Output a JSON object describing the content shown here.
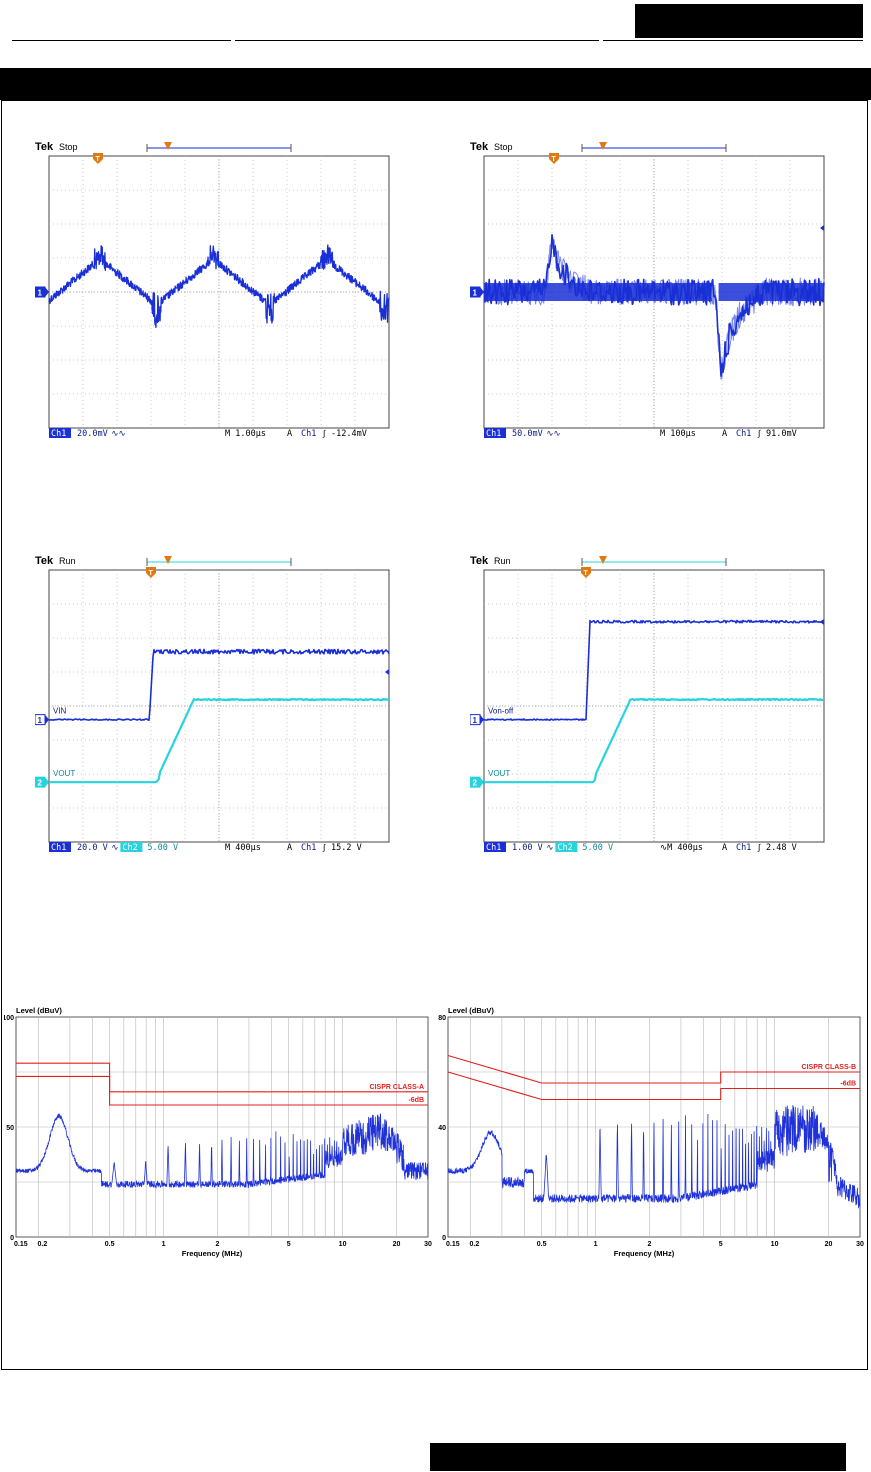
{
  "page": {
    "header_colors": {
      "bar": "#000000"
    }
  },
  "scopes": [
    {
      "id": "ripple",
      "tek": "Tek",
      "state": "Stop",
      "bottom": {
        "ch": "Ch1",
        "scale": "20.0mV",
        "bw": "∿∿",
        "time": "M 1.00µs",
        "trig": "A",
        "trigch": "Ch1",
        "slope": "∫",
        "level": "-12.4mV"
      },
      "ch1_marker": "1"
    },
    {
      "id": "transient",
      "tek": "Tek",
      "state": "Stop",
      "bottom": {
        "ch": "Ch1",
        "scale": "50.0mV",
        "bw": "∿∿",
        "time": "M 100µs",
        "trig": "A",
        "trigch": "Ch1",
        "slope": "∫",
        "level": "91.0mV"
      },
      "ch1_marker": "1"
    },
    {
      "id": "startup-vin",
      "tek": "Tek",
      "state": "Run",
      "labels": {
        "v1": "VIN",
        "v2": "VOUT"
      },
      "bottom": {
        "ch": "Ch1",
        "scale": "20.0 V",
        "bw": "∿",
        "ch2": "Ch2",
        "scale2": "5.00 V",
        "time": "M 400µs",
        "trig": "A",
        "trigch": "Ch1",
        "slope": "∫",
        "level": "15.2 V"
      },
      "ch1_marker": "1",
      "ch2_marker": "2"
    },
    {
      "id": "startup-onoff",
      "tek": "Tek",
      "state": "Run",
      "labels": {
        "v1": "Von-off",
        "v2": "VOUT"
      },
      "bottom": {
        "ch": "Ch1",
        "scale": "1.00 V",
        "bw": "∿",
        "ch2": "Ch2",
        "scale2": "5.00 V",
        "time": "∿M 400µs",
        "trig": "A",
        "trigch": "Ch1",
        "slope": "∫",
        "level": "2.48 V"
      },
      "ch1_marker": "1",
      "ch2_marker": "2"
    }
  ],
  "chart_data": [
    {
      "type": "line",
      "ylabel": "Level (dBuV)",
      "xlabel": "Frequency (MHz)",
      "ylim": [
        0,
        100
      ],
      "yticks": [
        "0",
        "50",
        "100"
      ],
      "xscale": "log",
      "xlim": [
        0.15,
        30
      ],
      "xticks": [
        "0.15",
        "0.2",
        "0.5",
        "1",
        "2",
        "5",
        "10",
        "20",
        "30"
      ],
      "series": [
        {
          "name": "CISPR CLASS-A",
          "color": "#e0201c",
          "x": [
            0.15,
            0.5,
            0.5,
            30
          ],
          "y": [
            79,
            79,
            66,
            66
          ]
        },
        {
          "name": "-6dB",
          "color": "#e0201c",
          "x": [
            0.15,
            0.5,
            0.5,
            30
          ],
          "y": [
            73,
            73,
            60,
            60
          ]
        }
      ],
      "trace_peaks": [
        {
          "x": 0.17,
          "y": 34
        },
        {
          "x": 0.2,
          "y": 31
        },
        {
          "x": 0.26,
          "y": 55
        },
        {
          "x": 0.3,
          "y": 36
        },
        {
          "x": 0.4,
          "y": 26
        },
        {
          "x": 0.55,
          "y": 36
        },
        {
          "x": 0.7,
          "y": 26
        },
        {
          "x": 0.9,
          "y": 45
        },
        {
          "x": 1.5,
          "y": 46
        },
        {
          "x": 3,
          "y": 48
        },
        {
          "x": 6,
          "y": 49
        },
        {
          "x": 10,
          "y": 50
        },
        {
          "x": 16,
          "y": 57
        },
        {
          "x": 20,
          "y": 48
        },
        {
          "x": 30,
          "y": 37
        }
      ]
    },
    {
      "type": "line",
      "ylabel": "Level (dBuV)",
      "xlabel": "Frequency (MHz)",
      "ylim": [
        0,
        80
      ],
      "yticks": [
        "0",
        "40",
        "80"
      ],
      "xscale": "log",
      "xlim": [
        0.15,
        30
      ],
      "xticks": [
        "0.15",
        "0.2",
        "0.5",
        "1",
        "2",
        "5",
        "10",
        "20",
        "30"
      ],
      "series": [
        {
          "name": "CISPR CLASS-B",
          "color": "#e0201c",
          "x": [
            0.15,
            0.5,
            5,
            5,
            30
          ],
          "y": [
            66,
            56,
            56,
            60,
            60
          ]
        },
        {
          "name": "-6dB",
          "color": "#e0201c",
          "x": [
            0.15,
            0.5,
            5,
            5,
            30
          ],
          "y": [
            60,
            50,
            50,
            54,
            54
          ]
        }
      ],
      "trace_peaks": [
        {
          "x": 0.17,
          "y": 29
        },
        {
          "x": 0.22,
          "y": 22
        },
        {
          "x": 0.28,
          "y": 38
        },
        {
          "x": 0.35,
          "y": 20
        },
        {
          "x": 0.5,
          "y": 26
        },
        {
          "x": 0.55,
          "y": 38
        },
        {
          "x": 0.8,
          "y": 14
        },
        {
          "x": 1,
          "y": 45
        },
        {
          "x": 2,
          "y": 47
        },
        {
          "x": 4,
          "y": 46
        },
        {
          "x": 7,
          "y": 47
        },
        {
          "x": 12,
          "y": 48
        },
        {
          "x": 17,
          "y": 48
        },
        {
          "x": 22,
          "y": 30
        },
        {
          "x": 30,
          "y": 12
        }
      ]
    }
  ]
}
